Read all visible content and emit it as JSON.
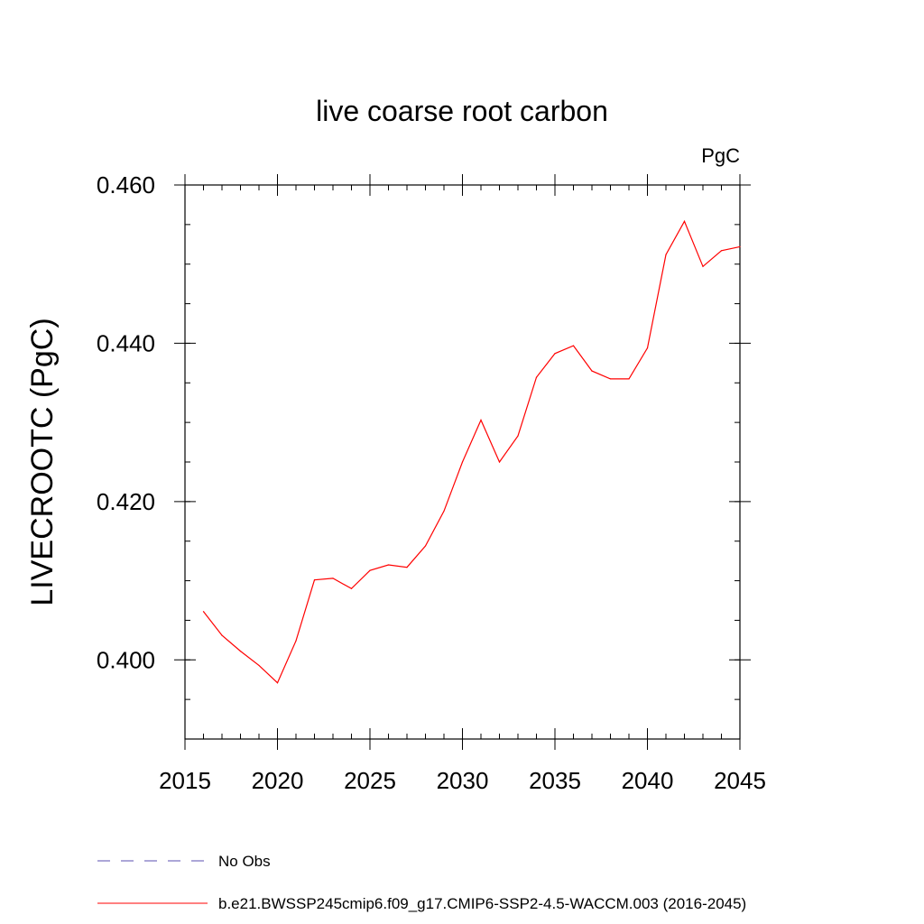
{
  "chart_data": {
    "type": "line",
    "title": "live coarse root carbon",
    "units_label": "PgC",
    "ylabel": "LIVECROOTC  (PgC)",
    "xlabel": "",
    "xlim": [
      2015,
      2045
    ],
    "ylim": [
      0.39,
      0.46
    ],
    "x_ticks": [
      {
        "value": 2015,
        "label": "2015"
      },
      {
        "value": 2020,
        "label": "2020"
      },
      {
        "value": 2025,
        "label": "2025"
      },
      {
        "value": 2030,
        "label": "2030"
      },
      {
        "value": 2035,
        "label": "2035"
      },
      {
        "value": 2040,
        "label": "2040"
      },
      {
        "value": 2045,
        "label": "2045"
      }
    ],
    "y_ticks": [
      {
        "value": 0.4,
        "label": "0.400"
      },
      {
        "value": 0.42,
        "label": "0.420"
      },
      {
        "value": 0.44,
        "label": "0.440"
      },
      {
        "value": 0.46,
        "label": "0.460"
      }
    ],
    "x_minor_step": 1,
    "y_minor_step": 0.005,
    "grid": false,
    "legend_position": "bottom-left",
    "legend": [
      {
        "label": "No Obs",
        "color": "#5a4fb0",
        "dash": "dashed"
      },
      {
        "label": "b.e21.BWSSP245cmip6.f09_g17.CMIP6-SSP2-4.5-WACCM.003 (2016-2045)",
        "color": "#ff0000",
        "dash": "solid"
      }
    ],
    "series": [
      {
        "name": "b.e21.BWSSP245cmip6.f09_g17.CMIP6-SSP2-4.5-WACCM.003 (2016-2045)",
        "color": "#ff0000",
        "x": [
          2016,
          2017,
          2018,
          2019,
          2020,
          2021,
          2022,
          2023,
          2024,
          2025,
          2026,
          2027,
          2028,
          2029,
          2030,
          2031,
          2032,
          2033,
          2034,
          2035,
          2036,
          2037,
          2038,
          2039,
          2040,
          2041,
          2042,
          2043,
          2044,
          2045
        ],
        "y": [
          0.4061,
          0.4031,
          0.4011,
          0.3993,
          0.3971,
          0.4024,
          0.4101,
          0.4103,
          0.409,
          0.4113,
          0.412,
          0.4117,
          0.4144,
          0.4188,
          0.425,
          0.4303,
          0.425,
          0.4283,
          0.4357,
          0.4387,
          0.4397,
          0.4365,
          0.4355,
          0.4355,
          0.4394,
          0.4512,
          0.4554,
          0.4497,
          0.4517,
          0.4522
        ]
      }
    ]
  }
}
